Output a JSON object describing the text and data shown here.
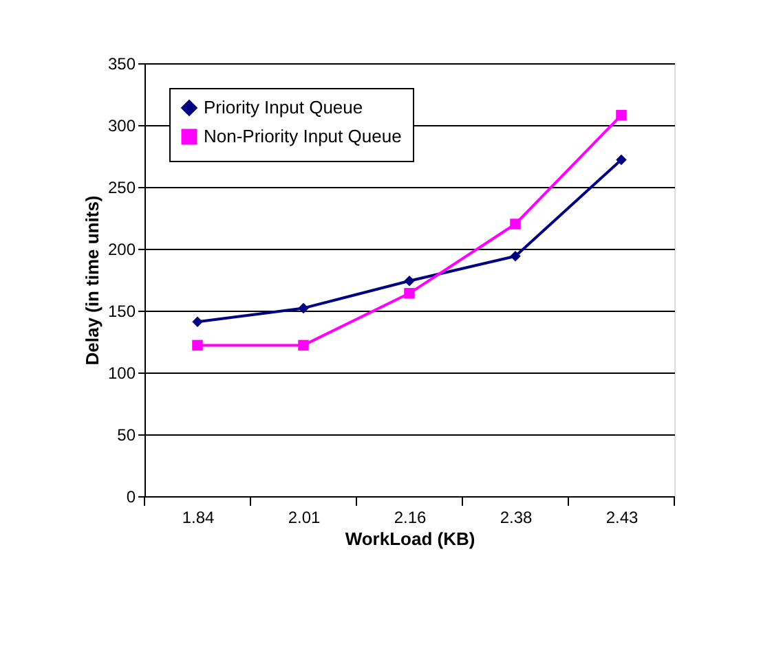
{
  "chart_data": {
    "type": "line",
    "xlabel": "WorkLoad (KB)",
    "ylabel": "Delay (in time units)",
    "categories": [
      "1.84",
      "2.01",
      "2.16",
      "2.38",
      "2.43"
    ],
    "series": [
      {
        "name": "Priority Input Queue",
        "color": "#000080",
        "marker": "diamond",
        "values": [
          141,
          152,
          174,
          194,
          272
        ]
      },
      {
        "name": "Non-Priority Input Queue",
        "color": "#ff00ff",
        "marker": "square",
        "values": [
          122,
          122,
          164,
          220,
          308
        ]
      }
    ],
    "ylim": [
      0,
      350
    ],
    "yticks": [
      0,
      50,
      100,
      150,
      200,
      250,
      300,
      350
    ],
    "grid": "y",
    "legend": "top left"
  }
}
